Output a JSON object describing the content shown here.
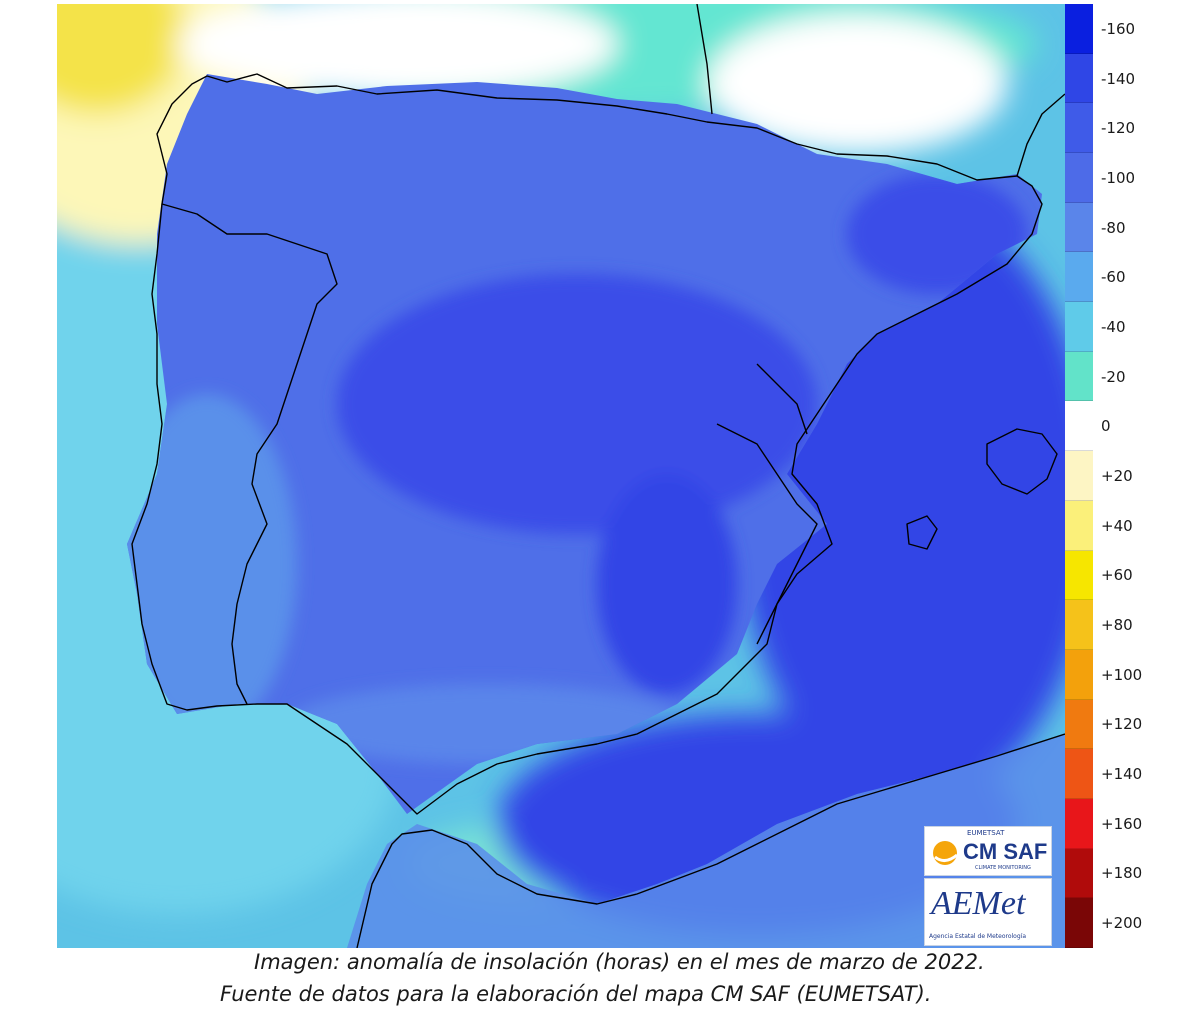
{
  "map": {
    "ocean_color": "#5dc3e6",
    "land_color": "#4f6fe8",
    "zones": [
      {
        "name": "north-atlantic-yellow",
        "color": "#f4e34a"
      },
      {
        "name": "north-atlantic-pale",
        "color": "#fdf7b8"
      },
      {
        "name": "cantabric-white",
        "color": "#ffffff"
      },
      {
        "name": "cantabric-aqua",
        "color": "#63e6d2"
      },
      {
        "name": "atlantic-cyan",
        "color": "#6fd3ec"
      },
      {
        "name": "central-deep",
        "color": "#3a4ee8"
      },
      {
        "name": "la-mancha-deepest",
        "color": "#3344e6"
      },
      {
        "name": "mediterranean-blue",
        "color": "#5d7bec"
      },
      {
        "name": "alboran-aqua",
        "color": "#78e2d6"
      }
    ]
  },
  "legend": {
    "items": [
      {
        "label": "-160",
        "color": "#0a1fe0"
      },
      {
        "label": "-140",
        "color": "#2f46e6"
      },
      {
        "label": "-120",
        "color": "#3f5be8"
      },
      {
        "label": "-100",
        "color": "#4d6be8"
      },
      {
        "label": "-80",
        "color": "#5a85ea"
      },
      {
        "label": "-60",
        "color": "#5aaaee"
      },
      {
        "label": "-40",
        "color": "#5fcbe9"
      },
      {
        "label": "-20",
        "color": "#62e3c9"
      },
      {
        "label": "0",
        "color": "#ffffff"
      },
      {
        "label": "+20",
        "color": "#fdf5c4"
      },
      {
        "label": "+40",
        "color": "#fbf07a"
      },
      {
        "label": "+60",
        "color": "#f6e600"
      },
      {
        "label": "+80",
        "color": "#f5c21a"
      },
      {
        "label": "+100",
        "color": "#f3a10c"
      },
      {
        "label": "+120",
        "color": "#f07a10"
      },
      {
        "label": "+140",
        "color": "#ee5515"
      },
      {
        "label": "+160",
        "color": "#e8161a"
      },
      {
        "label": "+180",
        "color": "#b00b0b"
      },
      {
        "label": "+200",
        "color": "#7a0606"
      }
    ]
  },
  "logos": {
    "eumetsat_label": "EUMETSAT",
    "cmsaf_label": "CM SAF",
    "cmsaf_sub": "CLIMATE MONITORING",
    "aemet_label": "AEMet",
    "aemet_sub": "Agencia Estatal de Meteorología"
  },
  "caption": {
    "line1": "Imagen: anomalía de insolación (horas) en el mes de marzo de 2022.",
    "line2": "Fuente de datos para la elaboración del mapa CM SAF (EUMETSAT)."
  }
}
